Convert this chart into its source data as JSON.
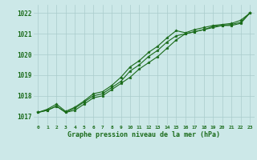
{
  "title": "Graphe pression niveau de la mer (hPa)",
  "bg_color": "#cce8e8",
  "grid_color": "#aacccc",
  "line_color": "#1a6b1a",
  "xlim": [
    -0.5,
    23.5
  ],
  "ylim": [
    1016.6,
    1022.4
  ],
  "yticks": [
    1017,
    1018,
    1019,
    1020,
    1021,
    1022
  ],
  "xticks": [
    0,
    1,
    2,
    3,
    4,
    5,
    6,
    7,
    8,
    9,
    10,
    11,
    12,
    13,
    14,
    15,
    16,
    17,
    18,
    19,
    20,
    21,
    22,
    23
  ],
  "series1": [
    1017.2,
    1017.3,
    1017.5,
    1017.2,
    1017.3,
    1017.6,
    1017.9,
    1018.0,
    1018.3,
    1018.6,
    1018.9,
    1019.3,
    1019.6,
    1019.9,
    1020.3,
    1020.7,
    1021.0,
    1021.1,
    1021.2,
    1021.3,
    1021.4,
    1021.4,
    1021.5,
    1022.0
  ],
  "series2": [
    1017.2,
    1017.3,
    1017.5,
    1017.2,
    1017.4,
    1017.7,
    1018.0,
    1018.1,
    1018.4,
    1018.7,
    1019.2,
    1019.5,
    1019.9,
    1020.2,
    1020.6,
    1020.9,
    1021.0,
    1021.1,
    1021.2,
    1021.35,
    1021.4,
    1021.45,
    1021.55,
    1022.0
  ],
  "series3": [
    1017.2,
    1017.35,
    1017.6,
    1017.25,
    1017.45,
    1017.75,
    1018.1,
    1018.2,
    1018.5,
    1018.9,
    1019.4,
    1019.7,
    1020.1,
    1020.4,
    1020.8,
    1021.15,
    1021.05,
    1021.2,
    1021.3,
    1021.4,
    1021.45,
    1021.5,
    1021.65,
    1022.0
  ]
}
